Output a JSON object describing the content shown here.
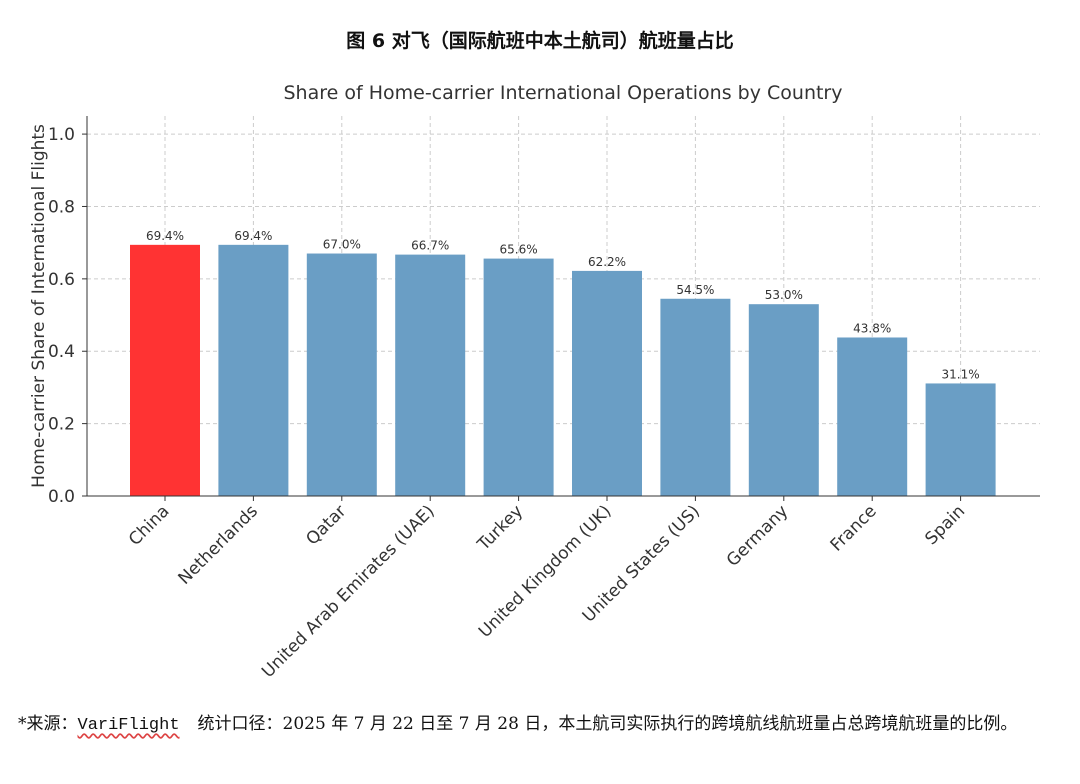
{
  "caption": "图 6 对飞（国际航班中本土航司）航班量占比",
  "chart_data": {
    "type": "bar",
    "title": "Share of Home-carrier International Operations by Country",
    "ylabel": "Home-carrier Share of International Flights",
    "categories": [
      "China",
      "Netherlands",
      "Qatar",
      "United Arab Emirates (UAE)",
      "Turkey",
      "United Kingdom (UK)",
      "United States (US)",
      "Germany",
      "France",
      "Spain"
    ],
    "values": [
      0.694,
      0.694,
      0.67,
      0.667,
      0.656,
      0.622,
      0.545,
      0.53,
      0.438,
      0.311
    ],
    "value_labels": [
      "69.4%",
      "69.4%",
      "67.0%",
      "66.7%",
      "65.6%",
      "62.2%",
      "54.5%",
      "53.0%",
      "43.8%",
      "31.1%"
    ],
    "colors": [
      "#ff3333",
      "#6a9ec5",
      "#6a9ec5",
      "#6a9ec5",
      "#6a9ec5",
      "#6a9ec5",
      "#6a9ec5",
      "#6a9ec5",
      "#6a9ec5",
      "#6a9ec5"
    ],
    "ylim": [
      0,
      1.05
    ],
    "yticks": [
      {
        "value": 0,
        "label": "0.0"
      },
      0.2,
      0.4,
      0.6,
      0.8,
      {
        "value": 1,
        "label": "1.0"
      }
    ],
    "grid": true
  },
  "footnote": {
    "prefix": "*来源：",
    "source": "VariFlight",
    "text": "统计口径：2025 年 7 月 22 日至 7 月 28 日，本土航司实际执行的跨境航线航班量占总跨境航班量的比例。"
  }
}
